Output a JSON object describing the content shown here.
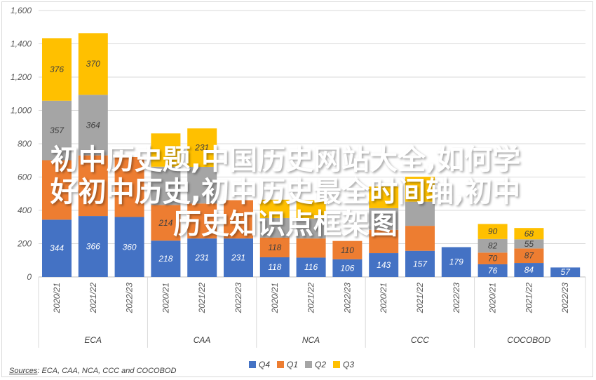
{
  "chart_data": {
    "type": "bar",
    "stacked": true,
    "ylim": [
      0,
      1600
    ],
    "yticks": [
      "0",
      "200",
      "400",
      "600",
      "800",
      "1,000",
      "1,200",
      "1,400",
      "1,600"
    ],
    "grid": true,
    "legend_position": "bottom",
    "groups": [
      {
        "name": "ECA",
        "categories": [
          "2020/21",
          "2021/22",
          "2022/23"
        ]
      },
      {
        "name": "CAA",
        "categories": [
          "2020/21",
          "2021/22",
          "2022/23"
        ]
      },
      {
        "name": "NCA",
        "categories": [
          "2020/21",
          "2021/22",
          "2022/23"
        ]
      },
      {
        "name": "CCC",
        "categories": [
          "2020/21",
          "2021/22",
          "2022/23"
        ]
      },
      {
        "name": "COCOBOD",
        "categories": [
          "2020/21",
          "2021/22",
          "2022/23"
        ]
      }
    ],
    "series": [
      {
        "name": "Q4",
        "color": "#4472c4",
        "values": [
          344,
          366,
          360,
          218,
          231,
          231,
          118,
          116,
          106,
          143,
          157,
          179,
          76,
          84,
          57
        ]
      },
      {
        "name": "Q1",
        "color": "#ed7d31",
        "values": [
          null,
          null,
          null,
          214,
          null,
          null,
          118,
          null,
          110,
          null,
          null,
          null,
          70,
          87,
          null
        ]
      },
      {
        "name": "Q2",
        "color": "#a5a5a5",
        "values": [
          357,
          364,
          null,
          null,
          null,
          null,
          null,
          null,
          null,
          null,
          null,
          null,
          82,
          55,
          null
        ]
      },
      {
        "name": "Q3",
        "color": "#ffc000",
        "values": [
          376,
          370,
          null,
          null,
          231,
          null,
          null,
          null,
          null,
          null,
          null,
          null,
          90,
          68,
          null
        ]
      }
    ],
    "estimated_stack_values": [
      [
        344,
        357,
        357,
        376
      ],
      [
        366,
        364,
        364,
        370
      ],
      [
        360,
        360,
        0,
        0
      ],
      [
        218,
        214,
        230,
        200
      ],
      [
        231,
        210,
        220,
        231
      ],
      [
        231,
        230,
        0,
        0
      ],
      [
        118,
        118,
        118,
        110
      ],
      [
        116,
        115,
        120,
        110
      ],
      [
        106,
        110,
        0,
        0
      ],
      [
        143,
        140,
        130,
        130
      ],
      [
        157,
        150,
        145,
        150
      ],
      [
        179,
        0,
        0,
        0
      ],
      [
        76,
        70,
        82,
        90
      ],
      [
        84,
        87,
        55,
        68
      ],
      [
        57,
        0,
        0,
        0
      ]
    ],
    "source_label": "Sources",
    "source_text": ": ECA, CAA, NCA, CCC and COCOBOD"
  },
  "overlay": {
    "lines": [
      "初中历史题,中国历史网站大全,如何学",
      "好初中历史,初中历史最全时间轴,初中",
      "历史知识点框架图"
    ]
  }
}
